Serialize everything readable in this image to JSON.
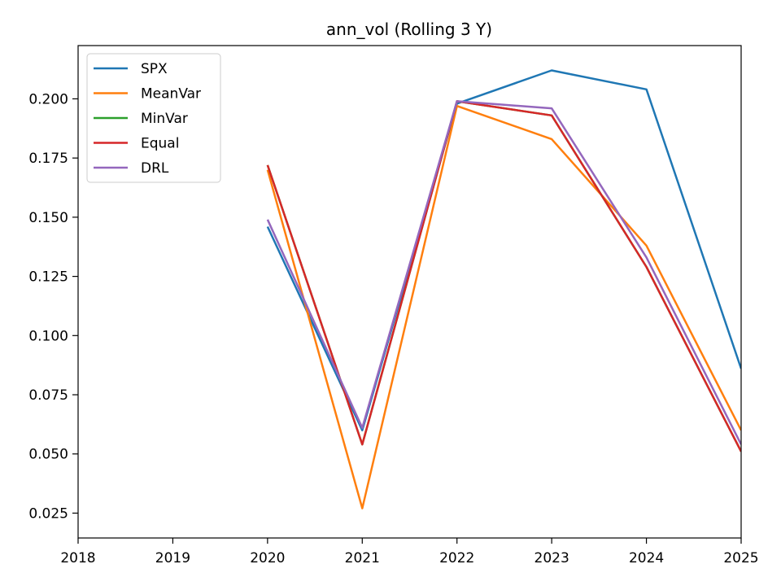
{
  "chart_data": {
    "type": "line",
    "title": "ann_vol (Rolling 3 Y)",
    "xlabel": "",
    "ylabel": "",
    "x": [
      2020,
      2021,
      2022,
      2023,
      2024,
      2025
    ],
    "xlim": [
      2018,
      2025
    ],
    "ylim": [
      0.0145,
      0.2225
    ],
    "x_ticks": [
      2018,
      2019,
      2020,
      2021,
      2022,
      2023,
      2024,
      2025
    ],
    "x_tick_labels": [
      "2018",
      "2019",
      "2020",
      "2021",
      "2022",
      "2023",
      "2024",
      "2025"
    ],
    "y_ticks": [
      0.025,
      0.05,
      0.075,
      0.1,
      0.125,
      0.15,
      0.175,
      0.2
    ],
    "y_tick_labels": [
      "0.025",
      "0.050",
      "0.075",
      "0.100",
      "0.125",
      "0.150",
      "0.175",
      "0.200"
    ],
    "grid": false,
    "legend_position": "top-left",
    "series": [
      {
        "name": "SPX",
        "color": "#1f77b4",
        "values": [
          0.146,
          0.06,
          0.198,
          0.212,
          0.204,
          0.086
        ]
      },
      {
        "name": "MeanVar",
        "color": "#ff7f0e",
        "values": [
          0.17,
          0.027,
          0.197,
          0.183,
          0.138,
          0.06
        ]
      },
      {
        "name": "MinVar",
        "color": "#2ca02c",
        "values": [
          0.172,
          0.054,
          0.199,
          0.193,
          0.129,
          0.051
        ]
      },
      {
        "name": "Equal",
        "color": "#d62728",
        "values": [
          0.172,
          0.054,
          0.199,
          0.193,
          0.129,
          0.051
        ]
      },
      {
        "name": "DRL",
        "color": "#9467bd",
        "values": [
          0.149,
          0.061,
          0.199,
          0.196,
          0.133,
          0.054
        ]
      }
    ]
  }
}
